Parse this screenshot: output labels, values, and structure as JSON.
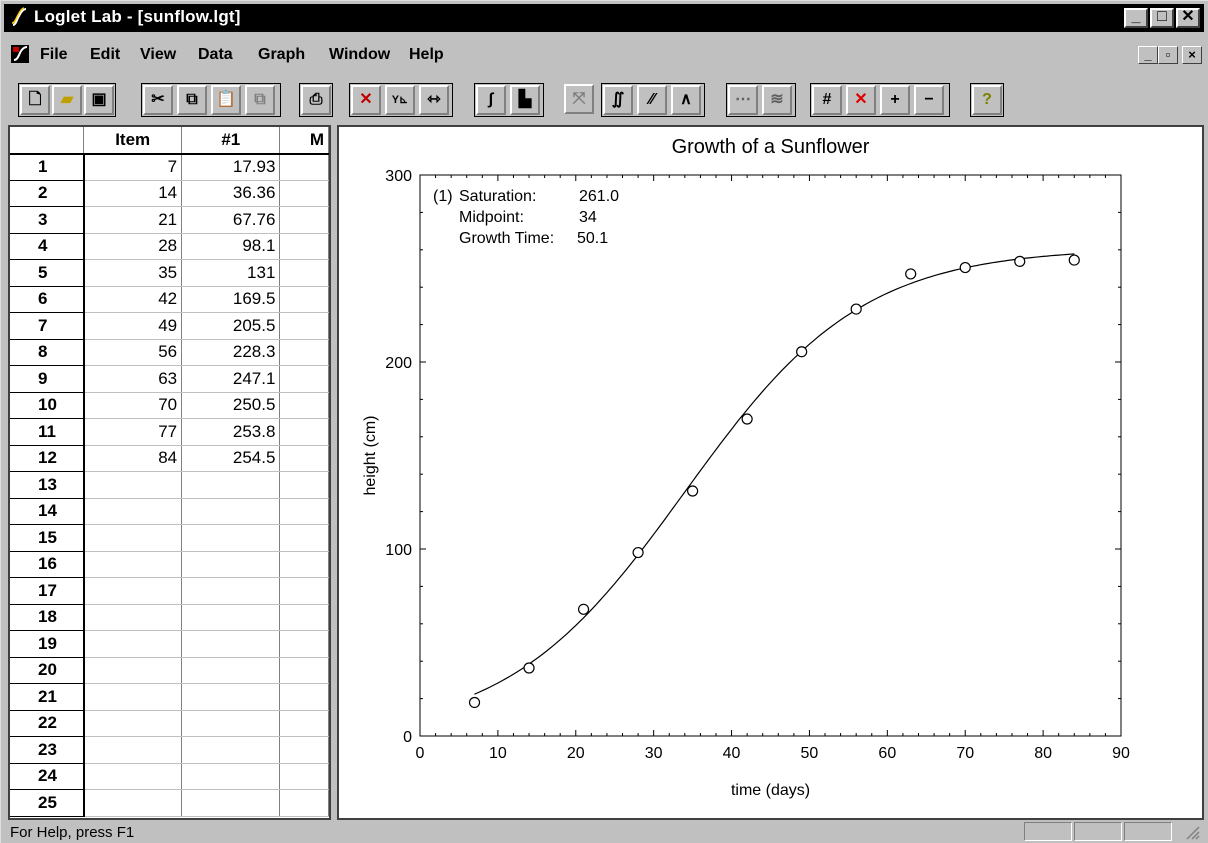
{
  "window": {
    "title": "Loglet Lab - [sunflow.lgt]"
  },
  "menu": [
    "File",
    "Edit",
    "View",
    "Data",
    "Graph",
    "Window",
    "Help"
  ],
  "toolbar_icons": [
    "new-icon",
    "open-icon",
    "save-icon",
    "cut-icon",
    "copy-icon",
    "paste-icon",
    "duplicate-icon",
    "print-icon",
    "scatter-icon",
    "xy-axis-icon",
    "fit-width-icon",
    "logistic-curve-icon",
    "fill-icon",
    "cross-curves-icon",
    "bi-logistic-icon",
    "line-icon",
    "peak-icon",
    "dotted-line-icon",
    "multi-line-icon",
    "slash-icon",
    "delete-x-icon",
    "plus-icon",
    "minus-icon",
    "help-icon"
  ],
  "grid": {
    "headers": [
      "",
      "Item",
      "#1",
      "M"
    ],
    "rows": [
      {
        "n": "1",
        "item": "7",
        "v": "17.93"
      },
      {
        "n": "2",
        "item": "14",
        "v": "36.36"
      },
      {
        "n": "3",
        "item": "21",
        "v": "67.76"
      },
      {
        "n": "4",
        "item": "28",
        "v": "98.1"
      },
      {
        "n": "5",
        "item": "35",
        "v": "131"
      },
      {
        "n": "6",
        "item": "42",
        "v": "169.5"
      },
      {
        "n": "7",
        "item": "49",
        "v": "205.5"
      },
      {
        "n": "8",
        "item": "56",
        "v": "228.3"
      },
      {
        "n": "9",
        "item": "63",
        "v": "247.1"
      },
      {
        "n": "10",
        "item": "70",
        "v": "250.5"
      },
      {
        "n": "11",
        "item": "77",
        "v": "253.8"
      },
      {
        "n": "12",
        "item": "84",
        "v": "254.5"
      },
      {
        "n": "13",
        "item": "",
        "v": ""
      },
      {
        "n": "14",
        "item": "",
        "v": ""
      },
      {
        "n": "15",
        "item": "",
        "v": ""
      },
      {
        "n": "16",
        "item": "",
        "v": ""
      },
      {
        "n": "17",
        "item": "",
        "v": ""
      },
      {
        "n": "18",
        "item": "",
        "v": ""
      },
      {
        "n": "19",
        "item": "",
        "v": ""
      },
      {
        "n": "20",
        "item": "",
        "v": ""
      },
      {
        "n": "21",
        "item": "",
        "v": ""
      },
      {
        "n": "22",
        "item": "",
        "v": ""
      },
      {
        "n": "23",
        "item": "",
        "v": ""
      },
      {
        "n": "24",
        "item": "",
        "v": ""
      },
      {
        "n": "25",
        "item": "",
        "v": ""
      }
    ]
  },
  "chart_data": {
    "type": "scatter",
    "title": "Growth of a Sunflower",
    "xlabel": "time (days)",
    "ylabel": "height (cm)",
    "xlim": [
      0,
      90
    ],
    "ylim": [
      0,
      300
    ],
    "xticks": [
      "0",
      "10",
      "20",
      "30",
      "40",
      "50",
      "60",
      "70",
      "80",
      "90"
    ],
    "yticks": [
      "0",
      "100",
      "200",
      "300"
    ],
    "points": [
      [
        7,
        17.93
      ],
      [
        14,
        36.36
      ],
      [
        21,
        67.76
      ],
      [
        28,
        98.1
      ],
      [
        35,
        131
      ],
      [
        42,
        169.5
      ],
      [
        49,
        205.5
      ],
      [
        56,
        228.3
      ],
      [
        63,
        247.1
      ],
      [
        70,
        250.5
      ],
      [
        77,
        253.8
      ],
      [
        84,
        254.5
      ]
    ],
    "fit": {
      "saturation": 261.0,
      "midpoint": 34,
      "growth_time": 50.1
    },
    "annotation": {
      "prefix": "(1)",
      "lines": [
        {
          "label": "Saturation:",
          "value": "261.0"
        },
        {
          "label": "Midpoint:",
          "value": "34"
        },
        {
          "label": "Growth Time:",
          "value": "50.1"
        }
      ]
    }
  },
  "status": {
    "text": "For Help, press F1"
  }
}
